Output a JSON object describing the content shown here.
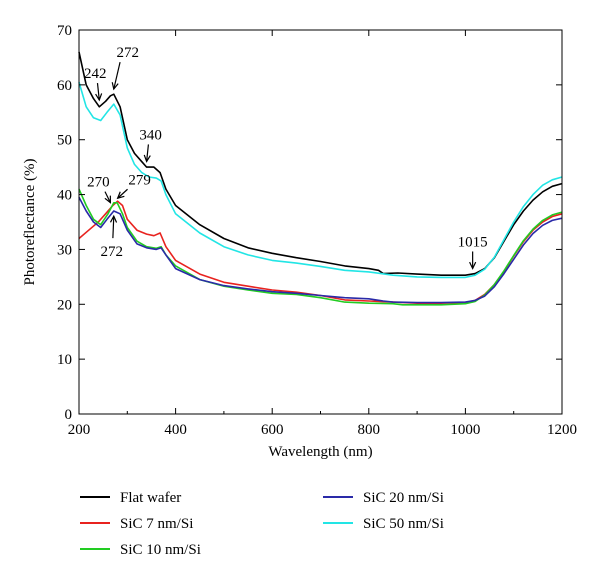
{
  "chart_data": {
    "type": "line",
    "xlabel": "Wavelength (nm)",
    "ylabel": "Photoreflectance (%)",
    "xlim": [
      200,
      1200
    ],
    "ylim": [
      0,
      70
    ],
    "xticks": [
      200,
      400,
      600,
      800,
      1000,
      1200
    ],
    "yticks": [
      0,
      10,
      20,
      30,
      40,
      50,
      60,
      70
    ],
    "grid": false,
    "legend_position": "below-plot",
    "series": [
      {
        "name": "Flat wafer",
        "color": "#000000",
        "points": [
          [
            200,
            66
          ],
          [
            215,
            60
          ],
          [
            230,
            57.5
          ],
          [
            242,
            56
          ],
          [
            255,
            57
          ],
          [
            265,
            58
          ],
          [
            272,
            58.3
          ],
          [
            285,
            56
          ],
          [
            300,
            50
          ],
          [
            315,
            47.5
          ],
          [
            330,
            46
          ],
          [
            340,
            45
          ],
          [
            355,
            45
          ],
          [
            368,
            44
          ],
          [
            380,
            41
          ],
          [
            400,
            38
          ],
          [
            450,
            34.5
          ],
          [
            500,
            32
          ],
          [
            550,
            30.3
          ],
          [
            600,
            29.3
          ],
          [
            650,
            28.5
          ],
          [
            700,
            27.8
          ],
          [
            750,
            27
          ],
          [
            800,
            26.5
          ],
          [
            820,
            26.2
          ],
          [
            830,
            25.6
          ],
          [
            860,
            25.7
          ],
          [
            900,
            25.5
          ],
          [
            950,
            25.3
          ],
          [
            1000,
            25.3
          ],
          [
            1020,
            25.6
          ],
          [
            1040,
            26.5
          ],
          [
            1060,
            28.5
          ],
          [
            1080,
            31.5
          ],
          [
            1100,
            34.5
          ],
          [
            1120,
            37
          ],
          [
            1140,
            39
          ],
          [
            1160,
            40.5
          ],
          [
            1180,
            41.5
          ],
          [
            1200,
            42
          ]
        ]
      },
      {
        "name": "SiC 7 nm/Si",
        "color": "#e8231f",
        "points": [
          [
            200,
            32
          ],
          [
            220,
            33.5
          ],
          [
            240,
            35
          ],
          [
            255,
            36.5
          ],
          [
            270,
            38
          ],
          [
            280,
            38.8
          ],
          [
            290,
            38
          ],
          [
            300,
            35.5
          ],
          [
            320,
            33.5
          ],
          [
            340,
            32.8
          ],
          [
            355,
            32.5
          ],
          [
            368,
            33
          ],
          [
            380,
            30.5
          ],
          [
            400,
            28
          ],
          [
            450,
            25.5
          ],
          [
            500,
            24
          ],
          [
            550,
            23.3
          ],
          [
            600,
            22.6
          ],
          [
            650,
            22.2
          ],
          [
            700,
            21.6
          ],
          [
            750,
            20.8
          ],
          [
            800,
            20.6
          ],
          [
            850,
            20.4
          ],
          [
            900,
            20.2
          ],
          [
            950,
            20.2
          ],
          [
            1000,
            20.3
          ],
          [
            1020,
            20.7
          ],
          [
            1040,
            21.8
          ],
          [
            1060,
            23.6
          ],
          [
            1080,
            26
          ],
          [
            1100,
            28.8
          ],
          [
            1120,
            31.4
          ],
          [
            1140,
            33.5
          ],
          [
            1160,
            35
          ],
          [
            1180,
            36
          ],
          [
            1200,
            36.5
          ]
        ]
      },
      {
        "name": "SiC 10 nm/Si",
        "color": "#22cc22",
        "points": [
          [
            200,
            41
          ],
          [
            215,
            38
          ],
          [
            230,
            35.5
          ],
          [
            245,
            34.5
          ],
          [
            260,
            36.5
          ],
          [
            272,
            38.5
          ],
          [
            279,
            38.5
          ],
          [
            290,
            36.5
          ],
          [
            300,
            34
          ],
          [
            320,
            31.5
          ],
          [
            340,
            30.5
          ],
          [
            360,
            30.2
          ],
          [
            370,
            30.5
          ],
          [
            380,
            29
          ],
          [
            400,
            27
          ],
          [
            450,
            24.5
          ],
          [
            500,
            23.3
          ],
          [
            550,
            22.6
          ],
          [
            600,
            22
          ],
          [
            650,
            21.8
          ],
          [
            700,
            21.2
          ],
          [
            750,
            20.4
          ],
          [
            800,
            20.2
          ],
          [
            850,
            20.1
          ],
          [
            870,
            19.9
          ],
          [
            900,
            19.9
          ],
          [
            950,
            19.9
          ],
          [
            1000,
            20.1
          ],
          [
            1020,
            20.5
          ],
          [
            1040,
            21.7
          ],
          [
            1060,
            23.6
          ],
          [
            1080,
            26.1
          ],
          [
            1100,
            28.9
          ],
          [
            1120,
            31.6
          ],
          [
            1140,
            33.7
          ],
          [
            1160,
            35.3
          ],
          [
            1180,
            36.3
          ],
          [
            1200,
            36.8
          ]
        ]
      },
      {
        "name": "SiC 20 nm/Si",
        "color": "#2a2aa8",
        "points": [
          [
            200,
            39.5
          ],
          [
            215,
            37
          ],
          [
            230,
            35
          ],
          [
            245,
            34
          ],
          [
            258,
            35.5
          ],
          [
            272,
            37
          ],
          [
            285,
            36.5
          ],
          [
            300,
            33.5
          ],
          [
            320,
            31
          ],
          [
            340,
            30.3
          ],
          [
            360,
            30
          ],
          [
            370,
            30.3
          ],
          [
            380,
            29
          ],
          [
            400,
            26.5
          ],
          [
            450,
            24.5
          ],
          [
            500,
            23.4
          ],
          [
            550,
            22.8
          ],
          [
            600,
            22.3
          ],
          [
            650,
            22
          ],
          [
            700,
            21.6
          ],
          [
            750,
            21.2
          ],
          [
            800,
            21
          ],
          [
            830,
            20.6
          ],
          [
            850,
            20.4
          ],
          [
            900,
            20.3
          ],
          [
            950,
            20.3
          ],
          [
            1000,
            20.4
          ],
          [
            1020,
            20.7
          ],
          [
            1040,
            21.5
          ],
          [
            1060,
            23.2
          ],
          [
            1080,
            25.6
          ],
          [
            1100,
            28.2
          ],
          [
            1120,
            30.8
          ],
          [
            1140,
            32.9
          ],
          [
            1160,
            34.4
          ],
          [
            1180,
            35.3
          ],
          [
            1200,
            35.7
          ]
        ]
      },
      {
        "name": "SiC 50 nm/Si",
        "color": "#22e5e5",
        "points": [
          [
            200,
            60.5
          ],
          [
            215,
            56
          ],
          [
            230,
            54
          ],
          [
            245,
            53.5
          ],
          [
            258,
            55
          ],
          [
            272,
            56.5
          ],
          [
            285,
            54.5
          ],
          [
            300,
            48.5
          ],
          [
            315,
            45.5
          ],
          [
            330,
            44
          ],
          [
            345,
            43.2
          ],
          [
            360,
            43
          ],
          [
            370,
            42.5
          ],
          [
            380,
            40
          ],
          [
            400,
            36.5
          ],
          [
            450,
            33
          ],
          [
            500,
            30.5
          ],
          [
            550,
            29
          ],
          [
            600,
            28
          ],
          [
            650,
            27.5
          ],
          [
            700,
            26.9
          ],
          [
            750,
            26.2
          ],
          [
            800,
            25.9
          ],
          [
            850,
            25.3
          ],
          [
            900,
            25
          ],
          [
            950,
            24.9
          ],
          [
            1000,
            24.9
          ],
          [
            1020,
            25.3
          ],
          [
            1040,
            26.4
          ],
          [
            1060,
            28.6
          ],
          [
            1080,
            31.8
          ],
          [
            1100,
            35
          ],
          [
            1120,
            37.8
          ],
          [
            1140,
            40
          ],
          [
            1160,
            41.7
          ],
          [
            1180,
            42.7
          ],
          [
            1200,
            43.2
          ]
        ]
      }
    ],
    "annotations": [
      {
        "text": "242",
        "x": 242,
        "y": 56.5
      },
      {
        "text": "272",
        "x": 272,
        "y": 58.5
      },
      {
        "text": "340",
        "x": 340,
        "y": 45.3
      },
      {
        "text": "270",
        "x": 265,
        "y": 37.8
      },
      {
        "text": "279",
        "x": 280,
        "y": 38.6
      },
      {
        "text": "272",
        "x": 272,
        "y": 36.8
      },
      {
        "text": "1015",
        "x": 1015,
        "y": 25.8
      }
    ]
  }
}
